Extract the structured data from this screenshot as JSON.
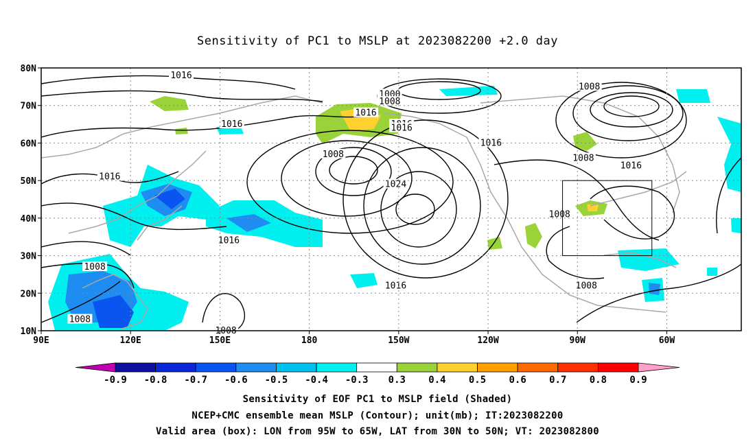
{
  "title": "Sensitivity of PC1 to MSLP at 2023082200 +2.0 day",
  "lat_ticks": [
    "80N",
    "70N",
    "60N",
    "50N",
    "40N",
    "30N",
    "20N",
    "10N"
  ],
  "lon_ticks": [
    "90E",
    "120E",
    "150E",
    "180",
    "150W",
    "120W",
    "90W",
    "60W"
  ],
  "contour_labels": [
    {
      "text": "1016",
      "lon": 137,
      "lat": 78
    },
    {
      "text": "1016",
      "lon": 154,
      "lat": 65
    },
    {
      "text": "1016",
      "lon": 113,
      "lat": 51
    },
    {
      "text": "1016",
      "lon": 153,
      "lat": 34
    },
    {
      "text": "1008",
      "lon": 108,
      "lat": 27
    },
    {
      "text": "1008",
      "lon": 103,
      "lat": 13
    },
    {
      "text": "1008",
      "lon": 152,
      "lat": 10
    },
    {
      "text": "1000",
      "lon": -153,
      "lat": 73
    },
    {
      "text": "1008",
      "lon": -153,
      "lat": 71
    },
    {
      "text": "1016",
      "lon": -161,
      "lat": 68
    },
    {
      "text": "1016",
      "lon": -149,
      "lat": 65
    },
    {
      "text": "1016",
      "lon": -149,
      "lat": 64
    },
    {
      "text": "1008",
      "lon": -172,
      "lat": 57
    },
    {
      "text": "1024",
      "lon": -151,
      "lat": 49
    },
    {
      "text": "1016",
      "lon": -151,
      "lat": 22
    },
    {
      "text": "1016",
      "lon": -119,
      "lat": 60
    },
    {
      "text": "1008",
      "lon": -86,
      "lat": 75
    },
    {
      "text": "1008",
      "lon": -88,
      "lat": 56
    },
    {
      "text": "1016",
      "lon": -72,
      "lat": 54
    },
    {
      "text": "1008",
      "lon": -96,
      "lat": 41
    },
    {
      "text": "1008",
      "lon": -87,
      "lat": 22
    }
  ],
  "colorbar": {
    "labels": [
      "-0.9",
      "-0.8",
      "-0.7",
      "-0.6",
      "-0.5",
      "-0.4",
      "-0.3",
      "0.3",
      "0.4",
      "0.5",
      "0.6",
      "0.7",
      "0.8",
      "0.9"
    ],
    "colors": [
      "#c000b0",
      "#1010a0",
      "#0a28d8",
      "#0a55f0",
      "#1e8cf0",
      "#00c0f0",
      "#00f0f0",
      "#ffffff",
      "#9ad23a",
      "#ffd030",
      "#ffa000",
      "#ff6a00",
      "#ff3000",
      "#ff0000",
      "#ffa0c8"
    ]
  },
  "valid_box": {
    "lon_min": -95,
    "lon_max": -65,
    "lat_min": 30,
    "lat_max": 50
  },
  "caption": {
    "line1": "Sensitivity of EOF PC1 to MSLP field (Shaded)",
    "line2": "NCEP+CMC ensemble mean MSLP (Contour); unit(mb); IT:2023082200",
    "line3": "Valid area (box): LON from 95W to 65W, LAT from 30N to 50N; VT: 2023082800"
  }
}
